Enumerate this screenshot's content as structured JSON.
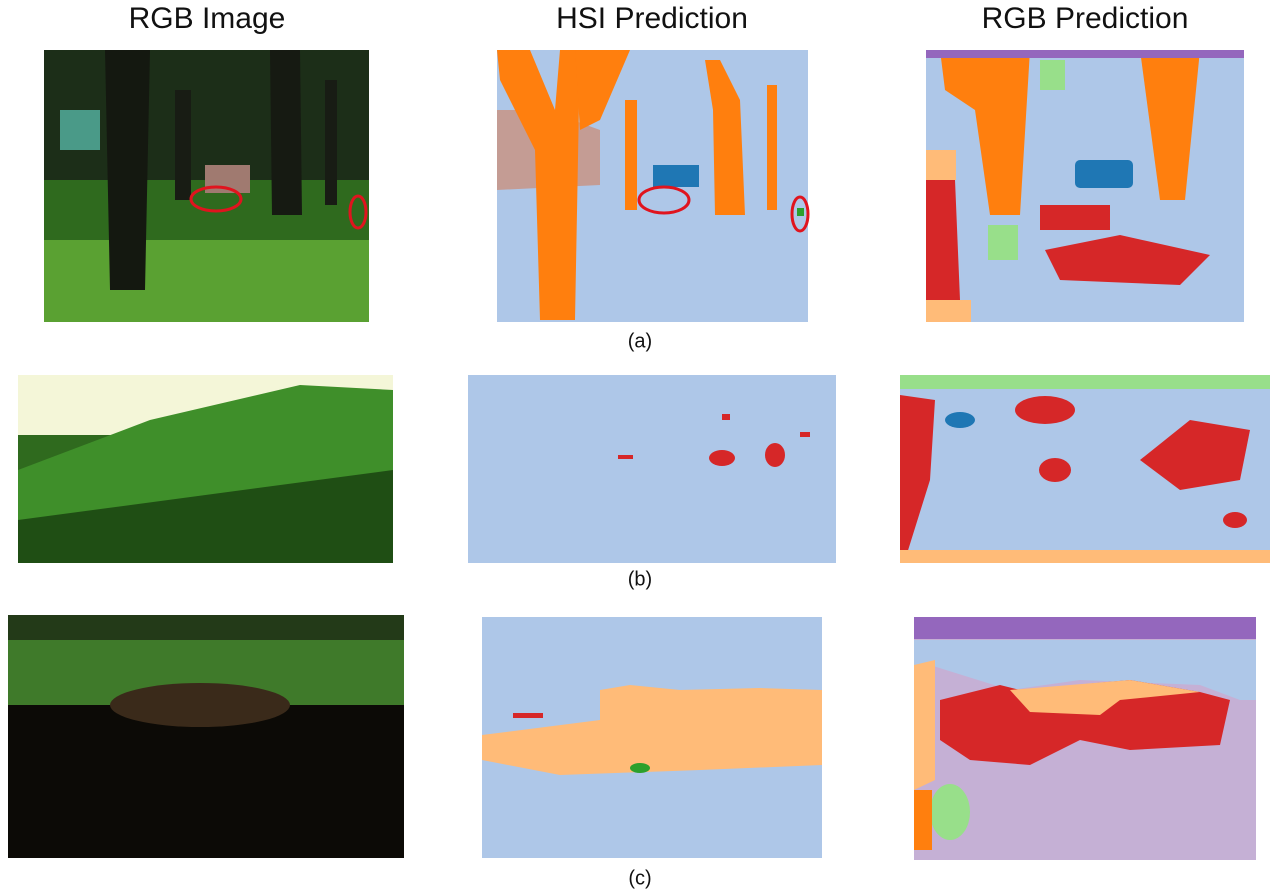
{
  "headers": [
    "RGB Image",
    "HSI Prediction",
    "RGB Prediction"
  ],
  "rows": [
    {
      "label": "(a)"
    },
    {
      "label": "(b)"
    },
    {
      "label": "(c)"
    }
  ]
}
